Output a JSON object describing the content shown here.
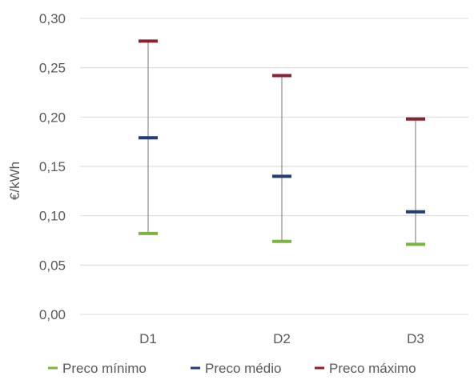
{
  "chart_data": {
    "type": "high-low-close",
    "categories": [
      "D1",
      "D2",
      "D3"
    ],
    "series": [
      {
        "name": "Preco mínimo",
        "values": [
          0.082,
          0.074,
          0.071
        ],
        "color": "#7cb342"
      },
      {
        "name": "Preco médio",
        "values": [
          0.179,
          0.14,
          0.104
        ],
        "color": "#203d7a"
      },
      {
        "name": "Preco máximo",
        "values": [
          0.277,
          0.242,
          0.198
        ],
        "color": "#8b2232"
      }
    ],
    "ylabel": "€/kWh",
    "ylim": [
      0,
      0.3
    ],
    "yticks": [
      "0,00",
      "0,05",
      "0,10",
      "0,15",
      "0,20",
      "0,25",
      "0,30"
    ],
    "grid": true,
    "legend_position": "bottom"
  }
}
